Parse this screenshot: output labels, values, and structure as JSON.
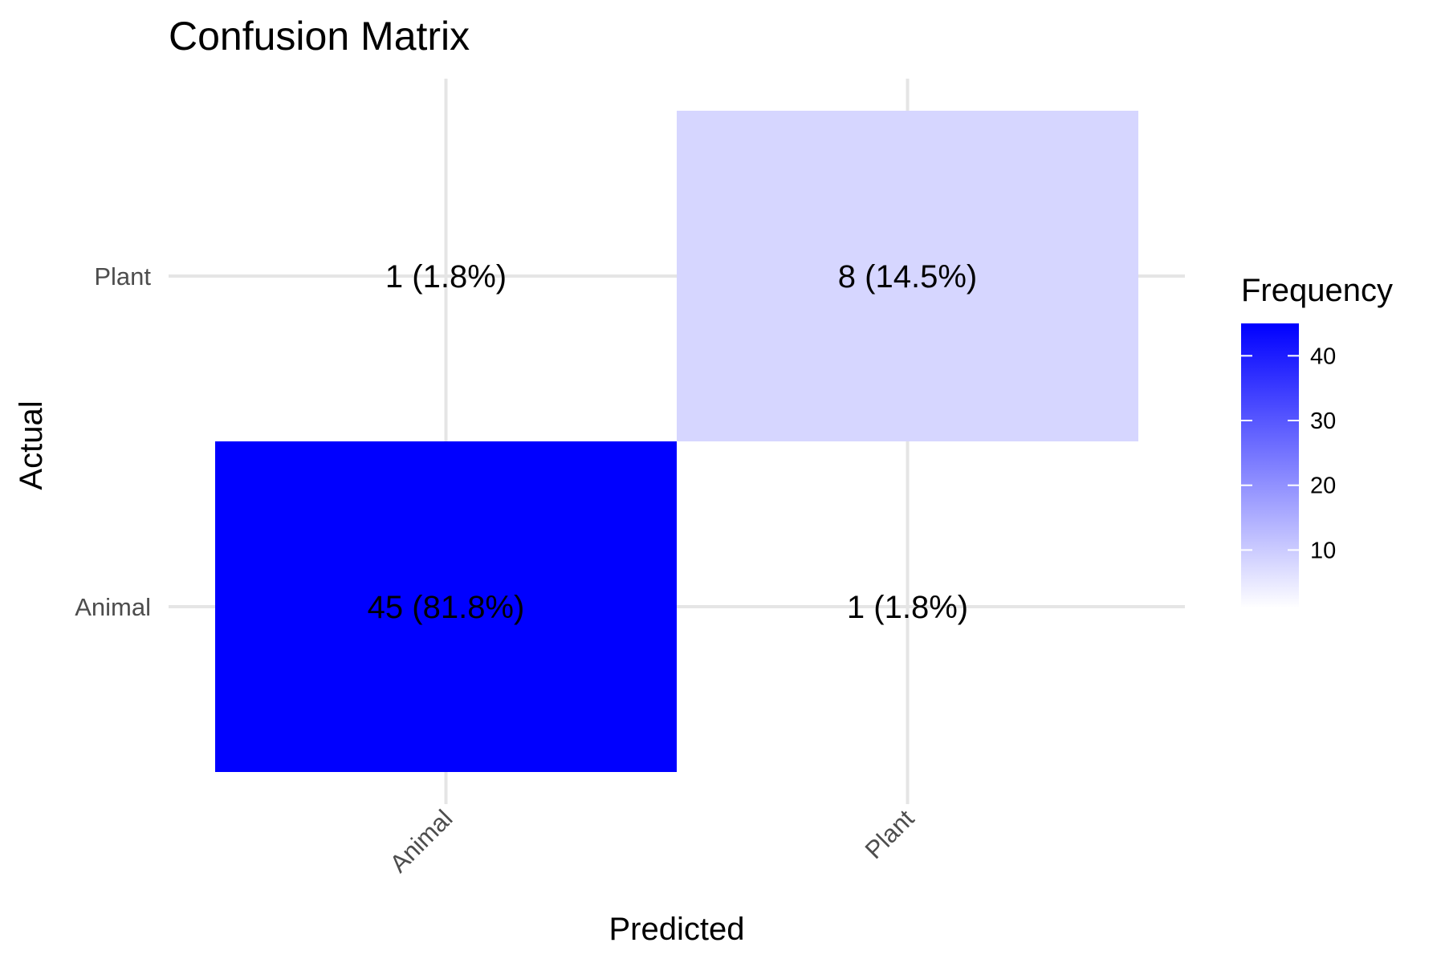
{
  "chart_data": {
    "type": "heatmap",
    "title": "Confusion Matrix",
    "xlabel": "Predicted",
    "ylabel": "Actual",
    "x_categories": [
      "Animal",
      "Plant"
    ],
    "y_categories": [
      "Animal",
      "Plant"
    ],
    "cells": [
      {
        "predicted": "Animal",
        "actual": "Animal",
        "value": 45,
        "label": "45 (81.8%)"
      },
      {
        "predicted": "Plant",
        "actual": "Animal",
        "value": 1,
        "label": "1 (1.8%)"
      },
      {
        "predicted": "Animal",
        "actual": "Plant",
        "value": 1,
        "label": "1 (1.8%)"
      },
      {
        "predicted": "Plant",
        "actual": "Plant",
        "value": 8,
        "label": "8 (14.5%)"
      }
    ],
    "legend": {
      "title": "Frequency",
      "placement": "right",
      "ticks": [
        10,
        20,
        30,
        40
      ],
      "range": [
        1,
        45
      ],
      "low_color": "#ffffff",
      "high_color": "#0000ff"
    },
    "grid": true
  }
}
